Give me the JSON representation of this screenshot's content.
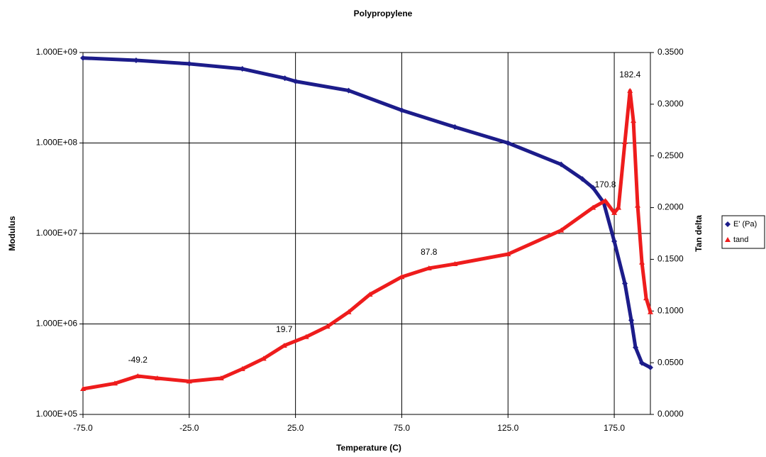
{
  "chart_data": {
    "type": "scatter",
    "title": "Polypropylene",
    "x_label": "Temperature (C)",
    "y_label": "Modulus",
    "y2_label": "Tan delta",
    "xlim": [
      -75,
      192
    ],
    "xticks": [
      {
        "value": -75,
        "label": "-75.0"
      },
      {
        "value": -25,
        "label": "-25.0"
      },
      {
        "value": 25,
        "label": "25.0"
      },
      {
        "value": 75,
        "label": "75.0"
      },
      {
        "value": 125,
        "label": "125.0"
      },
      {
        "value": 175,
        "label": "175.0"
      }
    ],
    "ylim": [
      100000,
      1000000000
    ],
    "ylog": true,
    "yticks": [
      {
        "value": 100000,
        "label": "1.000E+05"
      },
      {
        "value": 1000000,
        "label": "1.000E+06"
      },
      {
        "value": 10000000,
        "label": "1.000E+07"
      },
      {
        "value": 100000000,
        "label": "1.000E+08"
      },
      {
        "value": 1000000000,
        "label": "1.000E+09"
      }
    ],
    "y2lim": [
      0,
      0.35
    ],
    "y2ticks": [
      {
        "value": 0,
        "label": "0.0000"
      },
      {
        "value": 0.05,
        "label": "0.0500"
      },
      {
        "value": 0.1,
        "label": "0.1000"
      },
      {
        "value": 0.15,
        "label": "0.1500"
      },
      {
        "value": 0.2,
        "label": "0.2000"
      },
      {
        "value": 0.25,
        "label": "0.2500"
      },
      {
        "value": 0.3,
        "label": "0.3000"
      },
      {
        "value": 0.35,
        "label": "0.3500"
      }
    ],
    "grid": true,
    "legend": "right",
    "series": [
      {
        "name": "E' (Pa)",
        "color": "#1c1c8a",
        "marker": "diamond",
        "x": [
          -75,
          -50,
          -25,
          0,
          20,
          25,
          50,
          75,
          100,
          125,
          150,
          160,
          165,
          170,
          175,
          180,
          183,
          185,
          188,
          192
        ],
        "values": [
          870000000,
          820000000,
          750000000,
          660000000,
          520000000,
          480000000,
          380000000,
          230000000,
          150000000,
          100000000,
          58000000,
          40000000,
          32000000,
          22000000,
          8200000,
          2800000,
          1100000,
          550000,
          370000,
          330000
        ]
      },
      {
        "name": "tand",
        "color": "#ee1c1c",
        "marker": "triangle",
        "axis": "y2",
        "x": [
          -75,
          -60,
          -49.2,
          -40,
          -25,
          -10,
          0,
          10,
          19.7,
          30,
          40,
          50,
          60,
          75,
          87.8,
          100,
          125,
          150,
          165,
          170.8,
          175,
          177,
          180,
          182.4,
          184,
          186,
          188,
          190,
          192
        ],
        "values": [
          0.0247,
          0.03,
          0.0371,
          0.035,
          0.032,
          0.035,
          0.044,
          0.054,
          0.0666,
          0.075,
          0.085,
          0.099,
          0.116,
          0.133,
          0.1414,
          0.1455,
          0.155,
          0.178,
          0.2,
          0.2066,
          0.195,
          0.2,
          0.2635,
          0.313,
          0.284,
          0.202,
          0.147,
          0.1125,
          0.099
        ]
      }
    ],
    "annotations": [
      {
        "text": "-49.2",
        "x": -49.2
      },
      {
        "text": "19.7",
        "x": 19.7
      },
      {
        "text": "87.8",
        "x": 87.8
      },
      {
        "text": "170.8",
        "x": 170.8
      },
      {
        "text": "182.4",
        "x": 182.4
      }
    ]
  }
}
